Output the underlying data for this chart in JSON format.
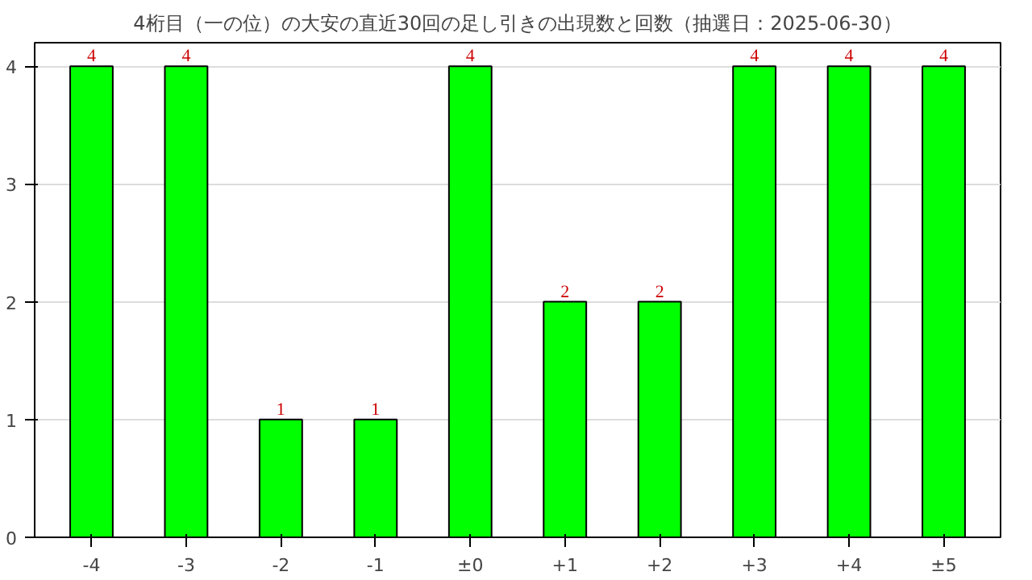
{
  "chart_data": {
    "type": "bar",
    "title": "4桁目（一の位）の大安の直近30回の足し引きの出現数と回数（抽選日：2025-06-30）",
    "categories": [
      "-4",
      "-3",
      "-2",
      "-1",
      "±0",
      "+1",
      "+2",
      "+3",
      "+4",
      "±5"
    ],
    "values": [
      4,
      4,
      1,
      1,
      4,
      2,
      2,
      4,
      4,
      4
    ],
    "color": "#00ff00",
    "ylim": [
      0,
      4.2
    ],
    "yticks": [
      0,
      1,
      2,
      3,
      4
    ],
    "grid": "y",
    "data_labels": true
  }
}
